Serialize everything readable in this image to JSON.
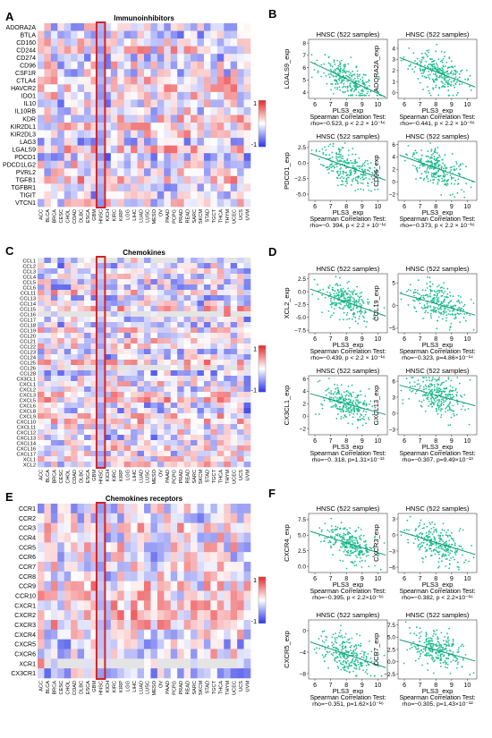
{
  "panels": {
    "A": {
      "letter": "A",
      "title": "Immunoinhibitors",
      "rows": [
        "ADORA2A",
        "BTLA",
        "CD160",
        "CD244",
        "CD274",
        "CD96",
        "CSF1R",
        "CTLA4",
        "HAVCR2",
        "IDO1",
        "IL10",
        "IL10RB",
        "KDR",
        "KIR2DL1",
        "KIR2DL3",
        "LAG3",
        "LGALS9",
        "PDCD1",
        "PDCD1LG2",
        "PVRL2",
        "TGFB1",
        "TGFBR1",
        "TIGIT",
        "VTCN1"
      ]
    },
    "C": {
      "letter": "C",
      "title": "Chemokines",
      "rows": [
        "CCL1",
        "CCL2",
        "CCL3",
        "CCL4",
        "CCL5",
        "CCL6",
        "CCL11",
        "CCL13",
        "CCL14",
        "CCL15",
        "CCL16",
        "CCL17",
        "CCL18",
        "CCL19",
        "CCL20",
        "CCL21",
        "CCL22",
        "CCL23",
        "CCL24",
        "CCL25",
        "CCL26",
        "CCL28",
        "CX3CL1",
        "CXCL1",
        "CXCL2",
        "CXCL3",
        "CXCL5",
        "CXCL6",
        "CXCL8",
        "CXCL9",
        "CXCL10",
        "CXCL11",
        "CXCL12",
        "CXCL13",
        "CXCL14",
        "CXCL16",
        "CXCL17",
        "XCL1",
        "XCL2"
      ]
    },
    "E": {
      "letter": "E",
      "title": "Chemokines  receptors",
      "rows": [
        "CCR1",
        "CCR2",
        "CCR3",
        "CCR4",
        "CCR5",
        "CCR6",
        "CCR7",
        "CCR8",
        "CCR9",
        "CCR10",
        "CXCR1",
        "CXCR2",
        "CXCR3",
        "CXCR4",
        "CXCR5",
        "CXCR6",
        "XCR1",
        "CX3CR1"
      ]
    },
    "B": {
      "letter": "B"
    },
    "D": {
      "letter": "D"
    },
    "F": {
      "letter": "F"
    }
  },
  "cancer_types": [
    "ACC",
    "BLCA",
    "BRCA",
    "CESC",
    "CHOL",
    "COAD",
    "DLBC",
    "ESCA",
    "GBM",
    "HNSC",
    "KICH",
    "KIRC",
    "KIRP",
    "LGG",
    "LIHC",
    "LUAD",
    "LUSC",
    "MESO",
    "OV",
    "PAAD",
    "PCPG",
    "PRAD",
    "READ",
    "SARC",
    "SKCM",
    "STAD",
    "TGCT",
    "THCA",
    "THYM",
    "UCEC",
    "UCS",
    "UVM"
  ],
  "highlight_column": "HNSC",
  "colorbar": {
    "max_label": "1",
    "min_label": "-1"
  },
  "colors": {
    "high": "#e8262b",
    "low": "#2b35e8",
    "mid": "#ffffff",
    "highlight": "#d42323",
    "points": "#1fbf8f"
  },
  "scatter_common": {
    "title": "HNSC   (522 samples)",
    "xlabel": "PLS3_exp",
    "x_ticks": [
      6,
      7,
      8,
      9,
      10
    ],
    "test_label": "Spearman Correlation Test:"
  },
  "chart_data": [
    {
      "type": "scatter",
      "panel": "B",
      "ylabel": "LGALS9_exp",
      "stat": "rho=−0.523, p < 2.2 × 10⁻¹⁶",
      "y_ticks": [
        4,
        5,
        6,
        7,
        8
      ],
      "ylim": [
        3.5,
        8.3
      ],
      "slope": -0.6,
      "intercept": 9.9,
      "spread": 0.7,
      "seed": 11
    },
    {
      "type": "scatter",
      "panel": "B",
      "ylabel": "ADORA2A_exp",
      "stat": "rho=−0.441, p < 2.2 × 10⁻¹⁶",
      "y_ticks": [
        0,
        1,
        2,
        3,
        4
      ],
      "ylim": [
        -0.5,
        4.8
      ],
      "slope": -0.55,
      "intercept": 6.3,
      "spread": 0.8,
      "seed": 23
    },
    {
      "type": "scatter",
      "panel": "B",
      "ylabel": "PDCD1_exp",
      "stat": "rho=−0. 394, p < 2.2 × 10⁻¹⁶",
      "y_ticks": [
        -5.0,
        -2.5,
        0.0,
        2.5
      ],
      "ylim": [
        -6,
        3.5
      ],
      "slope": -0.9,
      "intercept": 6.7,
      "spread": 1.5,
      "seed": 37
    },
    {
      "type": "scatter",
      "panel": "B",
      "ylabel": "CD96_exp",
      "stat": "rho=−0.373, p < 2.2 × 10⁻¹⁶",
      "y_ticks": [
        -2,
        0,
        2,
        4,
        6
      ],
      "ylim": [
        -3,
        6.5
      ],
      "slope": -0.9,
      "intercept": 9.4,
      "spread": 1.4,
      "seed": 41
    },
    {
      "type": "scatter",
      "panel": "D",
      "ylabel": "XCL2_exp",
      "stat": "rho=−0.439, p < 2.2 × 10⁻¹⁶",
      "y_ticks": [
        -7.5,
        -5.0,
        -2.5,
        0.0,
        2.5
      ],
      "ylim": [
        -8,
        3.5
      ],
      "slope": -1.1,
      "intercept": 6.8,
      "spread": 1.7,
      "seed": 53
    },
    {
      "type": "scatter",
      "panel": "D",
      "ylabel": "CCL19_exp",
      "stat": "rho=−0.323, p=4.86×10⁻¹⁴",
      "y_ticks": [
        -5,
        0,
        5
      ],
      "ylim": [
        -6,
        7
      ],
      "slope": -1.0,
      "intercept": 8.4,
      "spread": 2.0,
      "seed": 67
    },
    {
      "type": "scatter",
      "panel": "D",
      "ylabel": "CX3CL1_exp",
      "stat": "rho=−0. 318, p=1.31×10⁻¹³",
      "y_ticks": [
        -2,
        0,
        2,
        4,
        6
      ],
      "ylim": [
        -3,
        6.5
      ],
      "slope": -0.7,
      "intercept": 7.6,
      "spread": 1.4,
      "seed": 71
    },
    {
      "type": "scatter",
      "panel": "D",
      "ylabel": "CXCL13_exp",
      "stat": "rho=−0.307, p=9.49×10⁻¹³",
      "y_ticks": [
        -3,
        0,
        3,
        6
      ],
      "ylim": [
        -4,
        7
      ],
      "slope": -0.8,
      "intercept": 9.8,
      "spread": 1.8,
      "seed": 83
    },
    {
      "type": "scatter",
      "panel": "F",
      "ylabel": "CXCR4_exp",
      "stat": "rho=−0.395, p < 2.2×10⁻¹⁶",
      "y_ticks": [
        0.0,
        2.5,
        5.0,
        7.5
      ],
      "ylim": [
        -1,
        8.5
      ],
      "slope": -0.8,
      "intercept": 10.2,
      "spread": 1.4,
      "seed": 97
    },
    {
      "type": "scatter",
      "panel": "F",
      "ylabel": "CXCR3_exp",
      "stat": "rho=−0.382, p < 2.2×10⁻¹⁶",
      "y_ticks": [
        -6,
        -3,
        0,
        3
      ],
      "ylim": [
        -7,
        4
      ],
      "slope": -0.9,
      "intercept": 5.8,
      "spread": 1.7,
      "seed": 101
    },
    {
      "type": "scatter",
      "panel": "F",
      "ylabel": "CXCR5_exp",
      "stat": "rho=−0.351, p=1.62×10⁻¹⁶",
      "y_ticks": [
        -8,
        -4,
        0
      ],
      "ylim": [
        -9,
        2
      ],
      "slope": -1.0,
      "intercept": 3.6,
      "spread": 1.8,
      "seed": 113
    },
    {
      "type": "scatter",
      "panel": "F",
      "ylabel": "CCR7_exp",
      "stat": "rho=−0.305, p=1.43×10⁻¹²",
      "y_ticks": [
        -2.5,
        0.0,
        2.5,
        5.0,
        7.5
      ],
      "ylim": [
        -3.5,
        8.5
      ],
      "slope": -0.9,
      "intercept": 9.6,
      "spread": 1.8,
      "seed": 127
    }
  ]
}
